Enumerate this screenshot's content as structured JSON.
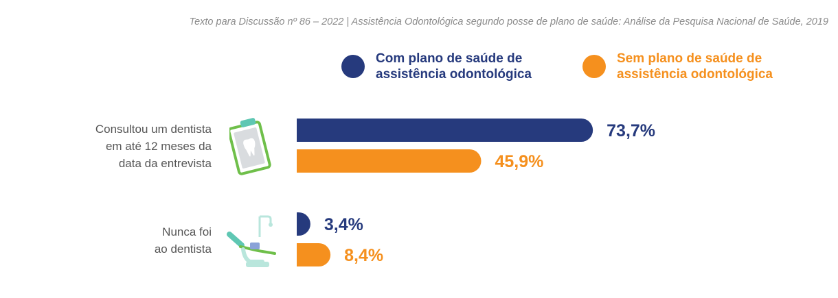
{
  "header": {
    "text": "Texto para Discussão nº 86 – 2022 | Assistência Odontológica segundo posse de plano de saúde: Análise da Pesquisa Nacional de Saúde, 2019"
  },
  "colors": {
    "series_1": "#263a7d",
    "series_2": "#f5901e",
    "icon_green": "#6fbf4a",
    "icon_teal": "#5fc7b3"
  },
  "icons": [
    "dental-clipboard-icon",
    "dental-chair-icon"
  ],
  "chart_data": {
    "type": "bar",
    "orientation": "horizontal",
    "categories": [
      "Consultou um dentista\nem até 12 meses da\ndata da entrevista",
      "Nunca foi\nao dentista"
    ],
    "series": [
      {
        "name": "Com plano de saúde de\nassistência odontológica",
        "values": [
          73.7,
          3.4
        ],
        "labels": [
          "73,7%",
          "3,4%"
        ]
      },
      {
        "name": "Sem plano de saúde de\nassistência odontológica",
        "values": [
          45.9,
          8.4
        ],
        "labels": [
          "45,9%",
          "8,4%"
        ]
      }
    ],
    "unit": "%",
    "xlim": [
      0,
      100
    ],
    "legend": "top",
    "grid": false
  }
}
